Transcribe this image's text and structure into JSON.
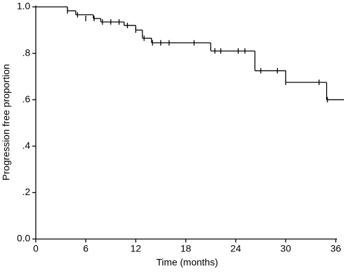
{
  "chart_data": {
    "type": "step",
    "x_label": "Time (months)",
    "y_label": "Progression free proportion",
    "xlim": [
      0,
      36
    ],
    "xticks": [
      0,
      6,
      12,
      18,
      24,
      30,
      36
    ],
    "ylim": [
      0,
      1
    ],
    "yticks": [
      {
        "value": 0,
        "label": "0.0"
      },
      {
        "value": 0.2,
        "label": ".2"
      },
      {
        "value": 0.4,
        "label": ".4"
      },
      {
        "value": 0.6,
        "label": ".6"
      },
      {
        "value": 0.8,
        "label": ".8"
      },
      {
        "value": 1,
        "label": "1.0"
      }
    ],
    "color": "#000000",
    "series": [
      {
        "x": [
          0,
          3.8,
          4.8,
          6.9,
          7.8,
          10.6,
          12,
          12.8,
          13.9,
          21,
          26.3,
          30,
          34.9
        ],
        "values": [
          1.0,
          0.983,
          0.966,
          0.95,
          0.935,
          0.92,
          0.9,
          0.865,
          0.845,
          0.81,
          0.725,
          0.675,
          0.6
        ]
      },
      {
        "x": [
          3.8,
          5,
          6,
          7,
          8,
          9,
          10,
          11,
          12,
          13,
          14,
          15,
          16,
          19,
          21.5,
          22.2,
          24.3,
          25.1,
          27,
          29,
          30,
          34,
          35
        ],
        "values": [
          0.983,
          0.966,
          0.95,
          0.95,
          0.935,
          0.935,
          0.935,
          0.92,
          0.9,
          0.865,
          0.845,
          0.845,
          0.845,
          0.845,
          0.81,
          0.81,
          0.81,
          0.81,
          0.725,
          0.725,
          0.675,
          0.675,
          0.6
        ]
      }
    ]
  }
}
